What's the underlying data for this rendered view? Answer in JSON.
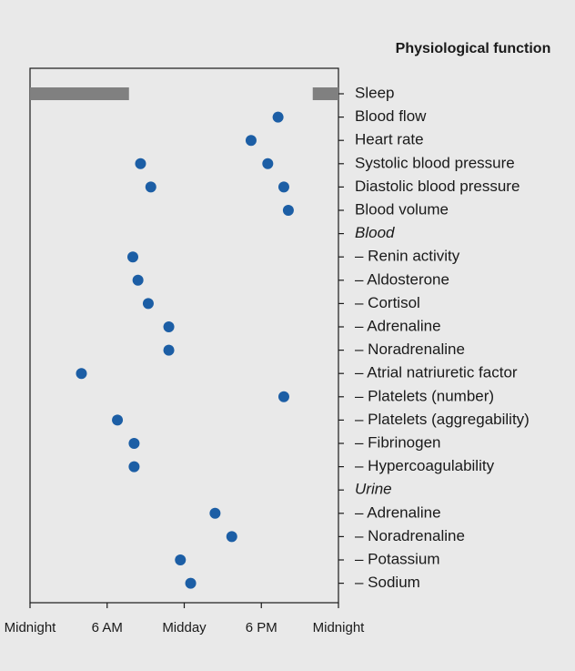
{
  "chart_data": {
    "type": "dot",
    "title": "Physiological function",
    "xlim": [
      0,
      24
    ],
    "xticks": [
      {
        "value": 0,
        "label": "Midnight"
      },
      {
        "value": 6,
        "label": "6 AM"
      },
      {
        "value": 12,
        "label": "Midday"
      },
      {
        "value": 18,
        "label": "6 PM"
      },
      {
        "value": 24,
        "label": "Midnight"
      }
    ],
    "dot_color": "#1c5ea5",
    "bar_color": "#808080",
    "rows": [
      {
        "label": "Sleep",
        "ranges": [
          [
            0,
            7.7
          ],
          [
            22,
            24
          ]
        ]
      },
      {
        "label": "Blood flow",
        "values": [
          19.3
        ]
      },
      {
        "label": "Heart rate",
        "values": [
          17.2
        ]
      },
      {
        "label": "Systolic blood pressure",
        "values": [
          8.6,
          18.5
        ]
      },
      {
        "label": "Diastolic blood pressure",
        "values": [
          9.4,
          19.75
        ]
      },
      {
        "label": "Blood volume",
        "values": [
          20.1
        ]
      },
      {
        "label": "Blood",
        "italic": true
      },
      {
        "label": "– Renin activity",
        "values": [
          8.0
        ]
      },
      {
        "label": "– Aldosterone",
        "values": [
          8.4
        ]
      },
      {
        "label": "– Cortisol",
        "values": [
          9.2
        ]
      },
      {
        "label": "– Adrenaline",
        "values": [
          10.8
        ]
      },
      {
        "label": "– Noradrenaline",
        "values": [
          10.8
        ]
      },
      {
        "label": "– Atrial natriuretic factor",
        "values": [
          4.0
        ]
      },
      {
        "label": "– Platelets (number)",
        "values": [
          19.75
        ]
      },
      {
        "label": "– Platelets (aggregability)",
        "values": [
          6.8
        ]
      },
      {
        "label": "– Fibrinogen",
        "values": [
          8.1
        ]
      },
      {
        "label": "– Hypercoagulability",
        "values": [
          8.1
        ]
      },
      {
        "label": "Urine",
        "italic": true
      },
      {
        "label": "– Adrenaline",
        "values": [
          14.4
        ]
      },
      {
        "label": "– Noradrenaline",
        "values": [
          15.7
        ]
      },
      {
        "label": "– Potassium",
        "values": [
          11.7
        ]
      },
      {
        "label": "– Sodium",
        "values": [
          12.5
        ]
      }
    ]
  }
}
